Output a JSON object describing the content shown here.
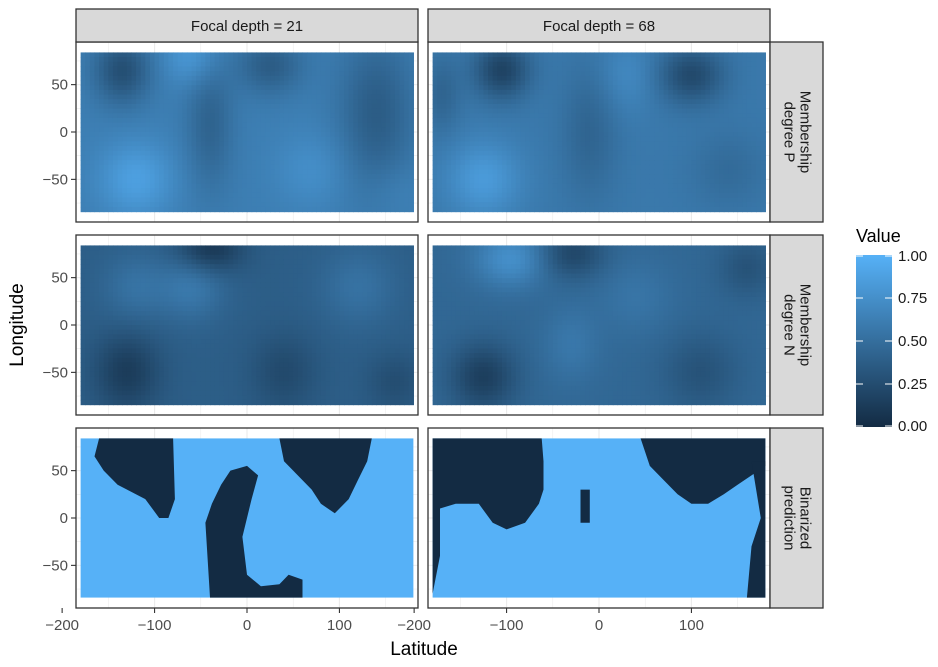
{
  "chart_data": {
    "type": "heatmap",
    "xlabel": "Latitude",
    "ylabel": "Longitude",
    "xlim": [
      -185,
      185
    ],
    "ylim": [
      -95,
      95
    ],
    "x_ticks": [
      -200,
      -100,
      0,
      100
    ],
    "y_ticks": [
      50,
      0,
      -50
    ],
    "x_tick_labels": [
      "−200",
      "−100",
      "0",
      "100"
    ],
    "y_tick_labels": [
      "50",
      "0",
      "−50"
    ],
    "column_facets": [
      "Focal depth = 21",
      "Focal depth = 68"
    ],
    "row_facets": [
      "Membership degree P",
      "Membership degree N",
      "Binarized prediction"
    ],
    "row_facet_lines": [
      [
        "Membership",
        "degree P"
      ],
      [
        "Membership",
        "degree N"
      ],
      [
        "Binarized",
        "prediction"
      ]
    ],
    "legend": {
      "title": "Value",
      "placement": "right",
      "tick_values": [
        1.0,
        0.75,
        0.5,
        0.25,
        0.0
      ],
      "tick_labels": [
        "1.00",
        "0.75",
        "0.50",
        "0.25",
        "0.00"
      ]
    },
    "grid": true,
    "colors": {
      "low": "#132B43",
      "high": "#56B1F7"
    },
    "data_extent": {
      "x": [
        -180,
        180
      ],
      "y": [
        -84,
        84
      ]
    },
    "panels": [
      {
        "row": "Membership degree P",
        "column": "Focal depth = 21",
        "kind": "continuous",
        "summary": "values mostly 0.4-0.8; darker bands near x=-135 (y 40-80), x=-40, x=25 (north), x=115-165; brightest near x=-120, y=-50 and x=-60, y=80"
      },
      {
        "row": "Membership degree P",
        "column": "Focal depth = 68",
        "kind": "continuous",
        "summary": "values mostly 0.3-0.8; darkest near x=-105, y=65 and x=100, y=60; brightest near x=-125, y=-50"
      },
      {
        "row": "Membership degree N",
        "column": "Focal depth = 21",
        "kind": "continuous",
        "summary": "values mostly 0.2-0.6; darkest near x=-130, y=-50 and x=-40, y=80; brighter near x=-60, y=40 and x=-120, y=40"
      },
      {
        "row": "Membership degree N",
        "column": "Focal depth = 68",
        "kind": "continuous",
        "summary": "values mostly 0.2-0.7; brightest near x=-95, y=70; darkest near x=-125, y=-55 and x=-30, y=75"
      },
      {
        "row": "Binarized prediction",
        "column": "Focal depth = 21",
        "kind": "binary",
        "summary": "value 1 background; value 0 regions: NW blob x -165 to -80, y 25 to 84; central C-shape x -45 to 60, y -84 to 50; NE blob x 35 to 135, y 5 to 84"
      },
      {
        "row": "Binarized prediction",
        "column": "Focal depth = 68",
        "kind": "binary",
        "summary": "value 1 background; value 0 regions: NW band x -180 to -60, y 0 to 84 dipping to y=-80 near x=-180; small blob x -20 to -10, y -5 to 30; NE blob x 45 to 180, y 15 to 84; eastern edge strip x 160 to 180, y -84 to 60"
      }
    ]
  }
}
